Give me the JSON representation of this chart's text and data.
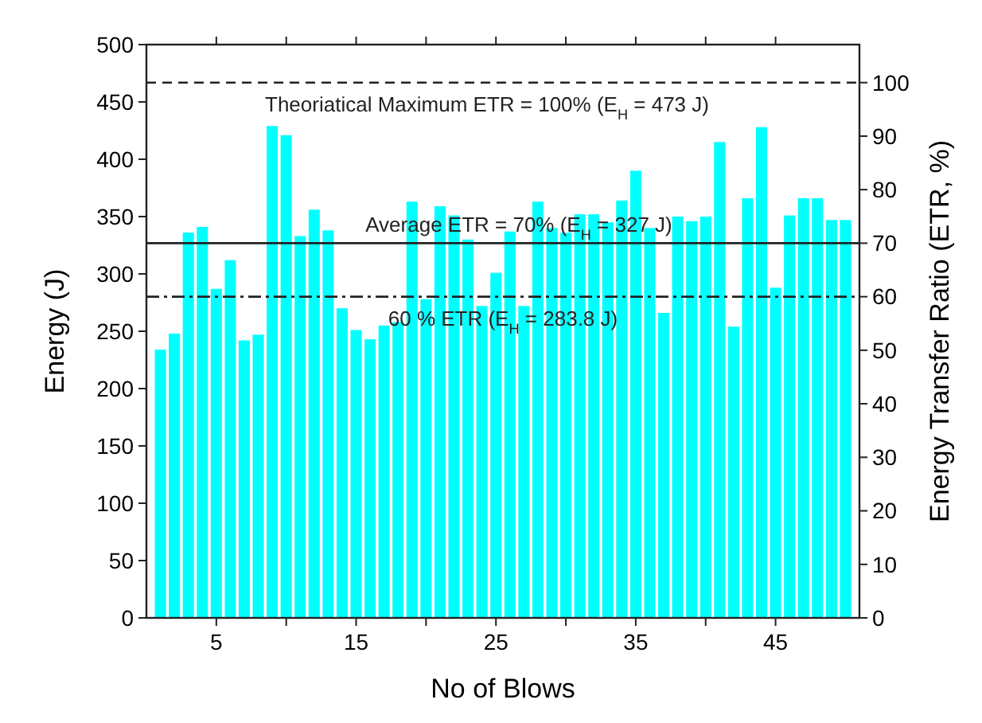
{
  "chart_data": {
    "type": "bar",
    "xlabel": "No of Blows",
    "ylabel": "Energy (J)",
    "y2label": "Energy Transfer Ratio (ETR, %)",
    "x": [
      1,
      2,
      3,
      4,
      5,
      6,
      7,
      8,
      9,
      10,
      11,
      12,
      13,
      14,
      15,
      16,
      17,
      18,
      19,
      20,
      21,
      22,
      23,
      24,
      25,
      26,
      27,
      28,
      29,
      30,
      31,
      32,
      33,
      34,
      35,
      36,
      37,
      38,
      39,
      40,
      41,
      42,
      43,
      44,
      45,
      46,
      47,
      48,
      49,
      50
    ],
    "values": [
      234,
      248,
      336,
      341,
      287,
      312,
      242,
      247,
      429,
      421,
      333,
      356,
      338,
      270,
      251,
      243,
      255,
      258,
      363,
      278,
      359,
      351,
      330,
      272,
      301,
      337,
      272,
      363,
      340,
      336,
      352,
      352,
      345,
      364,
      390,
      340,
      266,
      350,
      346,
      350,
      415,
      254,
      366,
      428,
      288,
      351,
      366,
      366,
      347,
      347
    ],
    "color": "#00ffff",
    "xlim": [
      0,
      51
    ],
    "xticks": [
      5,
      {
        "value": 10,
        "label": null
      },
      15,
      {
        "value": 20,
        "label": null
      },
      25,
      {
        "value": 30,
        "label": null
      },
      35,
      {
        "value": 40,
        "label": null
      },
      45
    ],
    "ylim": [
      0,
      500
    ],
    "yticks": [
      0,
      50,
      100,
      150,
      200,
      250,
      300,
      350,
      400,
      450,
      500
    ],
    "y2lim": [
      0,
      107.1
    ],
    "y2ticks": [
      0,
      10,
      20,
      30,
      40,
      50,
      60,
      70,
      80,
      90,
      100
    ],
    "ref_lines": [
      {
        "axis": "y2",
        "value": 100,
        "label": "Theoriatical Maximum ETR = 100% (E$_{H}$ = 473 J)",
        "line_style": "dashed"
      },
      {
        "axis": "y2",
        "value": 70,
        "label": "Average ETR = 70% (E$_{H}$ = 327 J)",
        "line_style": "solid"
      },
      {
        "axis": "y2",
        "value": 60,
        "label": "60 % ETR (E$_{H}$ = 283.8 J)",
        "line_style": "dashdot"
      }
    ]
  }
}
